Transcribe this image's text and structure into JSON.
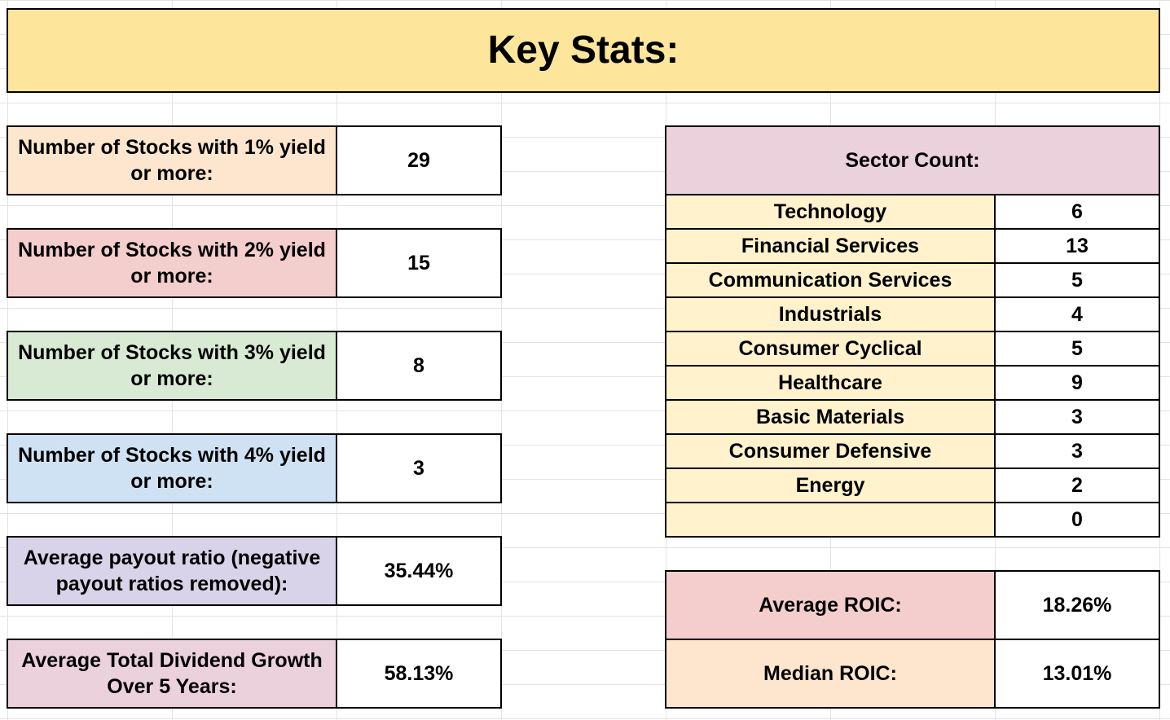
{
  "title": "Key Stats:",
  "left_stats": [
    {
      "label": "Number of Stocks with 1% yield or more:",
      "value": "29",
      "color": "#fde6cd"
    },
    {
      "label": "Number of Stocks with 2% yield or more:",
      "value": "15",
      "color": "#f4cdcd"
    },
    {
      "label": "Number of Stocks with 3% yield or more:",
      "value": "8",
      "color": "#d9ead4"
    },
    {
      "label": "Number of Stocks with 4% yield or more:",
      "value": "3",
      "color": "#cfe2f3"
    },
    {
      "label": "Average payout ratio (negative payout ratios removed):",
      "value": "35.44%",
      "color": "#d9d3e9"
    },
    {
      "label": "Average Total Dividend Growth Over 5 Years:",
      "value": "58.13%",
      "color": "#ead1dc"
    }
  ],
  "sector_header": {
    "label": "Sector Count:",
    "color": "#ead1dc"
  },
  "sectors": [
    {
      "name": "Technology",
      "count": "6"
    },
    {
      "name": "Financial Services",
      "count": "13"
    },
    {
      "name": "Communication Services",
      "count": "5"
    },
    {
      "name": "Industrials",
      "count": "4"
    },
    {
      "name": "Consumer Cyclical",
      "count": "5"
    },
    {
      "name": "Healthcare",
      "count": "9"
    },
    {
      "name": "Basic Materials",
      "count": "3"
    },
    {
      "name": "Consumer Defensive",
      "count": "3"
    },
    {
      "name": "Energy",
      "count": "2"
    },
    {
      "name": "",
      "count": "0"
    }
  ],
  "roic": [
    {
      "label": "Average ROIC:",
      "value": "18.26%",
      "color": "#f4cdcd"
    },
    {
      "label": "Median ROIC:",
      "value": "13.01%",
      "color": "#fde6cd"
    }
  ],
  "colors": {
    "title_bg": "#fde69b",
    "sector_row_bg": "#fff2cc",
    "border": "#000000",
    "grid": "#e3e3e3"
  }
}
